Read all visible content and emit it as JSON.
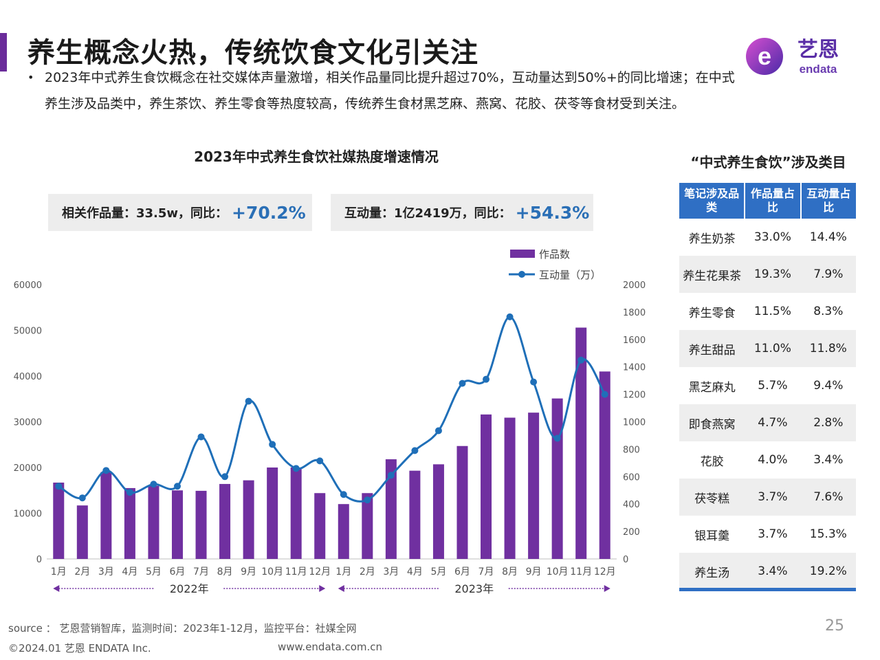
{
  "page_title": "养生概念火热，传统饮食文化引关注",
  "brand": {
    "name_cn": "艺恩",
    "name_en": "endata",
    "logo_letter": "e"
  },
  "bullet": "2023年中式养生食饮概念在社交媒体声量激增，相关作品量同比提升超过70%，互动量达到50%+的同比增速；在中式养生涉及品类中，养生茶饮、养生零食等热度较高，传统养生食材黑芝麻、燕窝、花胶、茯苓等食材受到关注。",
  "chart_title": "2023年中式养生食饮社媒热度增速情况",
  "kpis": [
    {
      "label": "相关作品量：33.5w，同比：",
      "value": "+70.2%"
    },
    {
      "label": "互动量：1亿2419万，同比：",
      "value": "+54.3%"
    }
  ],
  "chart_data": {
    "type": "bar+line",
    "categories": [
      "1月",
      "2月",
      "3月",
      "4月",
      "5月",
      "6月",
      "7月",
      "8月",
      "9月",
      "10月",
      "11月",
      "12月",
      "1月",
      "2月",
      "3月",
      "4月",
      "5月",
      "6月",
      "7月",
      "8月",
      "9月",
      "10月",
      "11月",
      "12月"
    ],
    "year_groups": [
      {
        "label": "2022年",
        "from": 0,
        "to": 11
      },
      {
        "label": "2023年",
        "from": 12,
        "to": 23
      }
    ],
    "series": [
      {
        "name": "作品数",
        "type": "bar",
        "axis": "left",
        "color": "#7030a0",
        "values": [
          16700,
          11700,
          19000,
          15500,
          16000,
          15000,
          14900,
          16400,
          17200,
          20000,
          20000,
          14400,
          12000,
          14400,
          21800,
          19300,
          20700,
          24700,
          31600,
          30900,
          32000,
          35100,
          50600,
          41000
        ]
      },
      {
        "name": "互动量（万）",
        "type": "line",
        "axis": "right",
        "color": "#1f6fb8",
        "values": [
          530,
          445,
          645,
          485,
          545,
          530,
          890,
          600,
          1150,
          835,
          660,
          715,
          470,
          430,
          610,
          790,
          935,
          1280,
          1310,
          1765,
          1290,
          880,
          1450,
          1200
        ]
      }
    ],
    "left_axis": {
      "min": 0,
      "max": 60000,
      "ticks": [
        0,
        10000,
        20000,
        30000,
        40000,
        50000,
        60000
      ]
    },
    "right_axis": {
      "min": 0,
      "max": 2000,
      "ticks": [
        0,
        200,
        400,
        600,
        800,
        1000,
        1200,
        1400,
        1600,
        1800,
        2000
      ]
    },
    "legend_position": "top-right",
    "grid": false
  },
  "table": {
    "title": "“中式养生食饮”涉及类目",
    "headers": [
      "笔记涉及品类",
      "作品量占比",
      "互动量占比"
    ],
    "rows": [
      [
        "养生奶茶",
        "33.0%",
        "14.4%"
      ],
      [
        "养生花果茶",
        "19.3%",
        "7.9%"
      ],
      [
        "养生零食",
        "11.5%",
        "8.3%"
      ],
      [
        "养生甜品",
        "11.0%",
        "11.8%"
      ],
      [
        "黑芝麻丸",
        "5.7%",
        "9.4%"
      ],
      [
        "即食燕窝",
        "4.7%",
        "2.8%"
      ],
      [
        "花胶",
        "4.0%",
        "3.4%"
      ],
      [
        "茯苓糕",
        "3.7%",
        "7.6%"
      ],
      [
        "银耳羹",
        "3.7%",
        "15.3%"
      ],
      [
        "养生汤",
        "3.4%",
        "19.2%"
      ]
    ],
    "header_color": "#2f6fc4"
  },
  "footer": {
    "source": "source ： 艺恩营销智库，监测时间：2023年1-12月，监控平台：社媒全网",
    "copyright": "©2024.01  艺恩 ENDATA Inc.",
    "website": "www.endata.com.cn",
    "page_number": "25"
  }
}
